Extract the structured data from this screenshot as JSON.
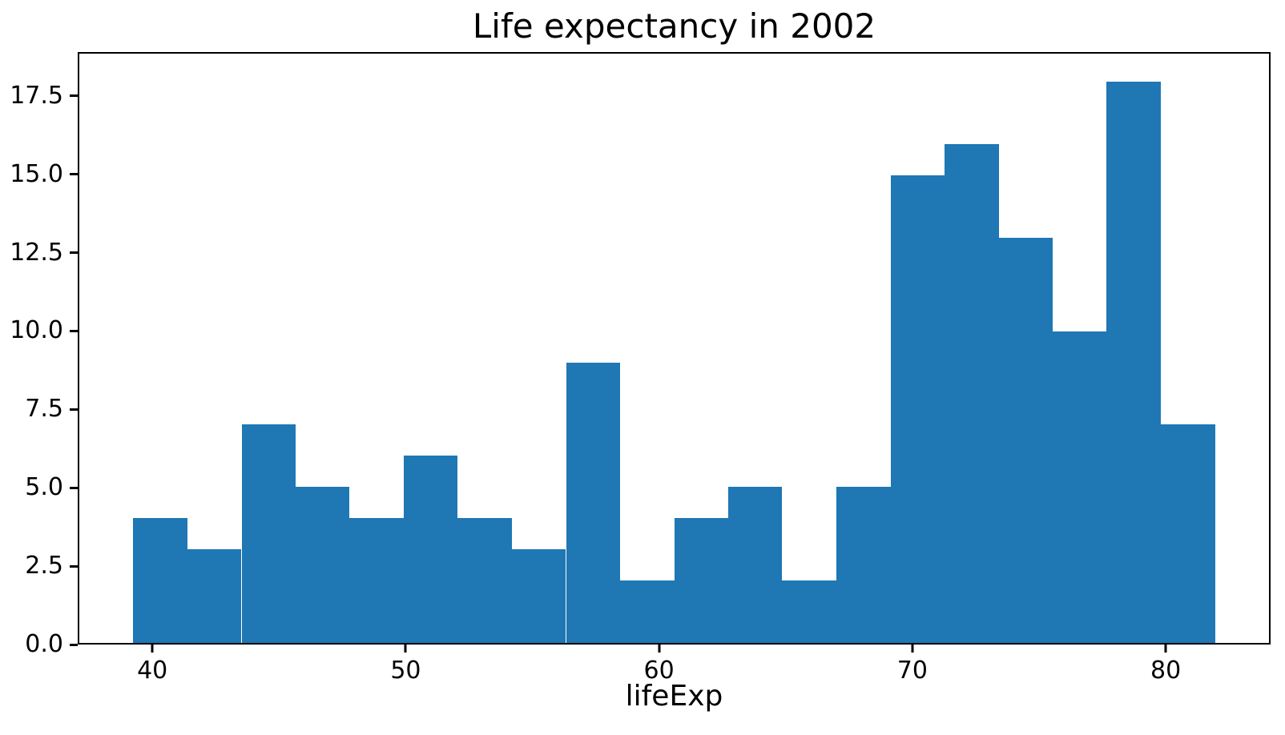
{
  "chart_data": {
    "type": "bar",
    "subtype": "histogram",
    "title": "Life expectancy in 2002",
    "xlabel": "lifeExp",
    "ylabel": "",
    "bar_color": "#1f77b4",
    "axis_color": "#000000",
    "background_color": "#ffffff",
    "grid": false,
    "legend": false,
    "bin_edges": [
      39.193,
      41.333,
      43.474,
      45.614,
      47.754,
      49.895,
      52.035,
      54.175,
      56.316,
      58.456,
      60.597,
      62.737,
      64.877,
      67.018,
      69.158,
      71.298,
      73.439,
      75.579,
      77.719,
      79.86,
      82.0
    ],
    "values": [
      4,
      3,
      7,
      5,
      4,
      6,
      4,
      3,
      9,
      2,
      4,
      5,
      2,
      5,
      15,
      16,
      13,
      10,
      18,
      7
    ],
    "xlim": [
      37.053,
      84.14
    ],
    "ylim": [
      0,
      18.9
    ],
    "xticks": [
      {
        "value": 40,
        "label": "40"
      },
      {
        "value": 50,
        "label": "50"
      },
      {
        "value": 60,
        "label": "60"
      },
      {
        "value": 70,
        "label": "70"
      },
      {
        "value": 80,
        "label": "80"
      }
    ],
    "yticks": [
      {
        "value": 0.0,
        "label": "0.0"
      },
      {
        "value": 2.5,
        "label": "2.5"
      },
      {
        "value": 5.0,
        "label": "5.0"
      },
      {
        "value": 7.5,
        "label": "7.5"
      },
      {
        "value": 10.0,
        "label": "10.0"
      },
      {
        "value": 12.5,
        "label": "12.5"
      },
      {
        "value": 15.0,
        "label": "15.0"
      },
      {
        "value": 17.5,
        "label": "17.5"
      }
    ]
  }
}
